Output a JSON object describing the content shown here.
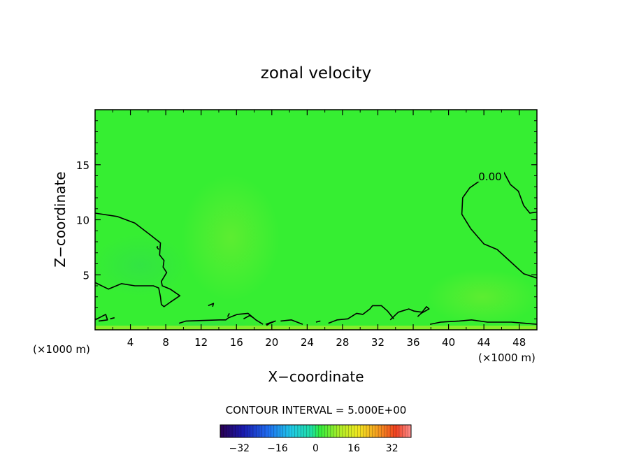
{
  "chart_data": {
    "type": "heatmap",
    "title": "zonal velocity",
    "xlabel": "X−coordinate",
    "ylabel": "Z−coordinate",
    "x_unit_label_left": "(×1000 m)",
    "x_unit_label_right": "(×1000 m)",
    "xlim": [
      0,
      50
    ],
    "ylim": [
      0,
      20
    ],
    "x_ticks": [
      "4",
      "8",
      "12",
      "16",
      "20",
      "24",
      "28",
      "32",
      "36",
      "40",
      "44",
      "48"
    ],
    "y_ticks": [
      "5",
      "10",
      "15"
    ],
    "background_field_color": "#36ee32",
    "contour_label": "0.00",
    "contour_interval_text": "CONTOUR INTERVAL = 5.000E+00",
    "colorbar": {
      "range": [
        -40,
        40
      ],
      "tick_labels": [
        "−32",
        "−16",
        "0",
        "16",
        "32"
      ],
      "tick_values": [
        -32,
        -16,
        0,
        16,
        32
      ]
    },
    "zero_contours": [
      [
        [
          0,
          10.6
        ],
        [
          2.5,
          10.3
        ],
        [
          4.5,
          9.7
        ],
        [
          6.3,
          8.6
        ],
        [
          7.4,
          7.9
        ],
        [
          7.3,
          6.8
        ],
        [
          7.8,
          6.3
        ],
        [
          7.7,
          5.7
        ],
        [
          8.1,
          5.2
        ],
        [
          7.5,
          4.4
        ],
        [
          7.6,
          4.0
        ],
        [
          8.5,
          3.7
        ],
        [
          9.6,
          3.1
        ],
        [
          8.5,
          2.5
        ],
        [
          7.8,
          2.1
        ],
        [
          7.5,
          2.3
        ],
        [
          7.4,
          3.0
        ],
        [
          7.2,
          3.8
        ],
        [
          6.6,
          4.0
        ],
        [
          4.5,
          4.0
        ],
        [
          3.0,
          4.2
        ],
        [
          1.5,
          3.7
        ],
        [
          0,
          4.3
        ]
      ],
      [
        [
          0,
          0.9
        ],
        [
          1.2,
          1.4
        ],
        [
          1.4,
          0.9
        ],
        [
          0.4,
          0.8
        ]
      ],
      [
        [
          9.5,
          0.6
        ],
        [
          10.3,
          0.8
        ],
        [
          14.1,
          0.9
        ],
        [
          14.8,
          0.9
        ],
        [
          15.1,
          1.1
        ],
        [
          16.1,
          1.4
        ],
        [
          17.3,
          1.5
        ],
        [
          18.2,
          0.9
        ],
        [
          19.0,
          0.5
        ]
      ],
      [
        [
          19.3,
          0.5
        ],
        [
          20.4,
          0.8
        ],
        [
          19.8,
          0.6
        ],
        [
          19.4,
          0.4
        ]
      ],
      [
        [
          21.0,
          0.8
        ],
        [
          22.2,
          0.9
        ],
        [
          23.5,
          0.5
        ]
      ],
      [
        [
          26.4,
          0.6
        ],
        [
          27.4,
          0.9
        ],
        [
          28.6,
          1.0
        ],
        [
          29.6,
          1.5
        ],
        [
          30.3,
          1.4
        ],
        [
          31.1,
          1.9
        ],
        [
          31.4,
          2.2
        ],
        [
          32.4,
          2.2
        ],
        [
          33.1,
          1.7
        ],
        [
          33.8,
          1.0
        ]
      ],
      [
        [
          33.4,
          0.9
        ],
        [
          34.3,
          1.6
        ],
        [
          35.5,
          1.9
        ],
        [
          36.1,
          1.7
        ],
        [
          37.0,
          1.6
        ],
        [
          37.5,
          2.1
        ],
        [
          37.8,
          1.9
        ],
        [
          36.9,
          1.5
        ],
        [
          36.5,
          1.2
        ]
      ],
      [
        [
          37.9,
          0.5
        ],
        [
          39.1,
          0.7
        ],
        [
          41.2,
          0.8
        ],
        [
          42.6,
          0.9
        ],
        [
          44.4,
          0.7
        ],
        [
          46.0,
          0.7
        ],
        [
          47.1,
          0.7
        ],
        [
          48.6,
          0.6
        ],
        [
          50,
          0.5
        ]
      ],
      [
        [
          50,
          10.7
        ],
        [
          49.2,
          10.6
        ],
        [
          48.5,
          11.3
        ],
        [
          47.9,
          12.6
        ],
        [
          47.0,
          13.2
        ],
        [
          46.2,
          14.4
        ],
        [
          45.2,
          14.4
        ],
        [
          44.0,
          13.8
        ],
        [
          42.4,
          12.9
        ],
        [
          41.6,
          12.0
        ],
        [
          41.5,
          10.5
        ],
        [
          42.5,
          9.2
        ],
        [
          44.0,
          7.8
        ],
        [
          45.5,
          7.3
        ],
        [
          47.0,
          6.2
        ],
        [
          48.5,
          5.1
        ],
        [
          50,
          4.7
        ]
      ],
      [
        [
          7.1,
          7.6
        ],
        [
          7.0,
          7.5
        ],
        [
          7.2,
          7.3
        ]
      ],
      [
        [
          12.8,
          2.2
        ],
        [
          13.4,
          2.4
        ],
        [
          13.3,
          2.1
        ]
      ],
      [
        [
          15.0,
          1.2
        ],
        [
          15.2,
          1.5
        ]
      ],
      [
        [
          1.7,
          1.0
        ],
        [
          2.2,
          1.1
        ]
      ],
      [
        [
          16.8,
          1.0
        ],
        [
          17.5,
          1.3
        ],
        [
          17.9,
          1.1
        ]
      ],
      [
        [
          25.0,
          0.7
        ],
        [
          25.5,
          0.8
        ]
      ]
    ]
  }
}
